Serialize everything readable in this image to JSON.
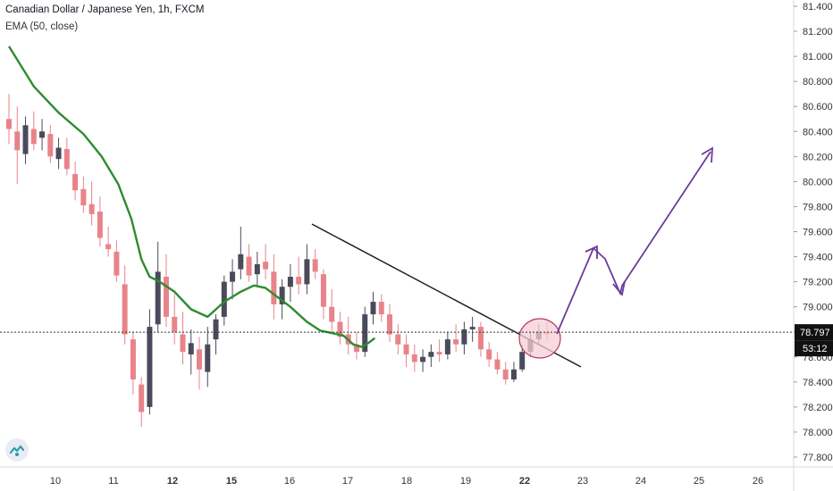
{
  "header": {
    "title": "Canadian Dollar / Japanese Yen, 1h, FXCM",
    "indicator": "EMA (50, close)"
  },
  "price_label": "78.797",
  "countdown": "53:12",
  "colors": {
    "up": "#4a4a5a",
    "down": "#e8838a",
    "ema": "#2e8b2e",
    "trendline": "#222222",
    "projection": "#6a3d9a",
    "highlight_fill": "#f6cfd6",
    "highlight_stroke": "#b04060",
    "price_tag": "#111111"
  },
  "chart_data": {
    "type": "candlestick",
    "ylim": [
      77.72,
      81.48
    ],
    "yticks": [
      "81.400",
      "81.200",
      "81.000",
      "80.800",
      "80.600",
      "80.400",
      "80.200",
      "80.000",
      "79.800",
      "79.600",
      "79.400",
      "79.200",
      "79.000",
      "78.800",
      "78.600",
      "78.400",
      "78.200",
      "78.000",
      "77.800"
    ],
    "xticks": [
      "10",
      "11",
      "12",
      "15",
      "16",
      "17",
      "18",
      "19",
      "22",
      "23",
      "24",
      "25",
      "26"
    ],
    "current_price": 78.797,
    "ema_label": "EMA (50, close)",
    "ema": [
      {
        "x": 0,
        "y": 81.08
      },
      {
        "x": 1.5,
        "y": 80.76
      },
      {
        "x": 3,
        "y": 80.55
      },
      {
        "x": 4.5,
        "y": 80.38
      },
      {
        "x": 5.6,
        "y": 80.2
      },
      {
        "x": 6.6,
        "y": 79.98
      },
      {
        "x": 7.4,
        "y": 79.7
      },
      {
        "x": 8,
        "y": 79.38
      },
      {
        "x": 8.5,
        "y": 79.24
      },
      {
        "x": 9.1,
        "y": 79.2
      },
      {
        "x": 10,
        "y": 79.12
      },
      {
        "x": 11,
        "y": 78.98
      },
      {
        "x": 12,
        "y": 78.92
      },
      {
        "x": 13,
        "y": 79.04
      },
      {
        "x": 14,
        "y": 79.12
      },
      {
        "x": 14.8,
        "y": 79.17
      },
      {
        "x": 15.5,
        "y": 79.15
      },
      {
        "x": 16.2,
        "y": 79.08
      },
      {
        "x": 17,
        "y": 79.0
      },
      {
        "x": 18,
        "y": 78.88
      },
      {
        "x": 18.8,
        "y": 78.81
      },
      {
        "x": 19.5,
        "y": 78.79
      },
      {
        "x": 20.2,
        "y": 78.77
      },
      {
        "x": 20.8,
        "y": 78.7
      },
      {
        "x": 21.3,
        "y": 78.68
      },
      {
        "x": 21.7,
        "y": 78.71
      },
      {
        "x": 22.1,
        "y": 78.75
      }
    ],
    "candles_raw": "0,80.50,80.70,80.30,80.42;0.5,80.40,80.60,79.98,80.25;1,80.22,80.52,80.14,80.45;1.5,80.42,80.56,80.25,80.30;2,80.35,80.50,80.25,80.40;2.5,80.38,80.45,80.15,80.20;3,80.18,80.35,80.10,80.27;3.5,80.26,80.35,80.05,80.10;4,80.06,80.16,79.85,79.93;4.5,79.94,80.04,79.75,79.81;5,79.82,80.00,79.65,79.74;5.5,79.76,79.88,79.48,79.55;6,79.50,79.64,79.40,79.46;6.5,79.44,79.53,79.20,79.25;7,79.18,79.33,78.70,78.78;7.5,78.74,78.80,78.30,78.42;8,78.38,78.44,78.04,78.16;8.5,78.20,78.98,78.14,78.84;9,78.86,79.52,78.80,79.28;9.5,79.24,79.42,78.84,78.92;10,78.92,79.10,78.70,78.80;10.5,78.78,78.96,78.54,78.64;11,78.62,78.82,78.46,78.71;11.5,78.66,78.76,78.34,78.50;12,78.48,78.84,78.36,78.70;12.5,78.74,78.94,78.62,78.90;13,78.92,79.25,78.85,79.20;13.5,79.20,79.38,79.06,79.28;14,79.30,79.64,79.22,79.42;14.5,79.40,79.50,79.20,79.25;15,79.26,79.44,79.16,79.34;15.5,79.36,79.50,79.22,79.30;16,79.28,79.42,78.90,79.02;16.5,79.02,79.22,78.90,79.16;17,79.16,79.34,79.04,79.24;17.5,79.24,79.40,79.10,79.18;18,79.18,79.50,79.10,79.38;18.5,79.38,79.46,79.22,79.28;19,79.26,79.30,78.90,79.00;19.5,79.00,79.14,78.80,78.88;20,78.88,78.96,78.70,78.76;20.5,78.78,78.92,78.62,78.70;21,78.70,78.80,78.58,78.64;21.5,78.64,79.00,78.60,78.94;22,78.94,79.12,78.86,79.04;22.5,79.04,79.10,78.88,78.94;23,78.94,79.02,78.72,78.78;23.5,78.78,78.86,78.62,78.70;24,78.70,78.78,78.52,78.62;24.5,78.62,78.70,78.48,78.56;25,78.56,78.66,78.48,78.60;25.5,78.60,78.70,78.52,78.64;26,78.64,78.74,78.56,78.62;26.5,78.62,78.80,78.58,78.74;27,78.74,78.86,78.64,78.70;27.5,78.70,78.88,78.62,78.82;28,78.82,78.92,78.72,78.84;28.5,78.84,78.88,78.60,78.66;29,78.66,78.72,78.52,78.58;29.5,78.58,78.64,78.46,78.50;30,78.50,78.56,78.38,78.42;30.5,78.42,78.56,78.40,78.50;31,78.50,78.70,78.48,78.64;31.5,78.64,78.80,78.60,78.74;32,78.74,78.86,78.70,78.80;32.5,78.80,78.88,78.72,78.78"
  }
}
